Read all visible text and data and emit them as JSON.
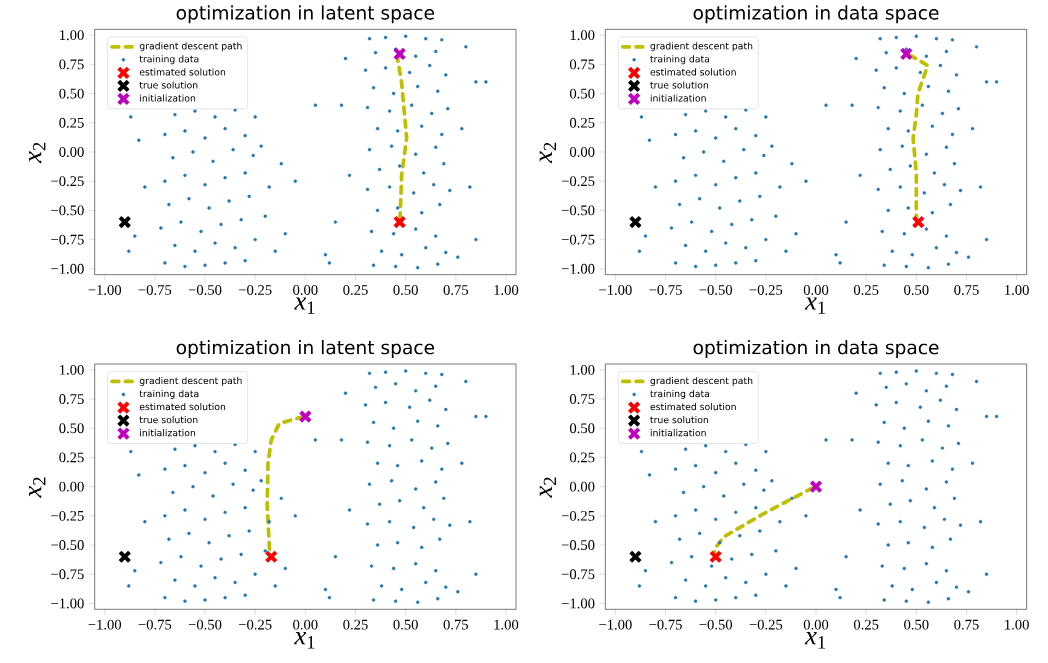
{
  "chart_data": [
    {
      "type": "scatter",
      "title": "optimization in latent space",
      "xlabel": "*x*$_{1}$",
      "ylabel": "*x*$_{2}$",
      "legend": "top left",
      "xlim": [
        -1.05,
        1.05
      ],
      "ylim": [
        -1.05,
        1.05
      ],
      "xticks": [
        {
          "value": -1,
          "label": "−1.00"
        },
        {
          "value": -0.75,
          "label": "−0.75"
        },
        {
          "value": -0.5,
          "label": "−0.50"
        },
        {
          "value": -0.25,
          "label": "−0.25"
        },
        {
          "value": 0,
          "label": "0.00"
        },
        {
          "value": 0.25,
          "label": "0.25"
        },
        {
          "value": 0.5,
          "label": "0.50"
        },
        {
          "value": 0.75,
          "label": "0.75"
        },
        {
          "value": 1,
          "label": "1.00"
        }
      ],
      "yticks": [
        {
          "value": -1,
          "label": "−1.00"
        },
        {
          "value": -0.75,
          "label": "−0.75"
        },
        {
          "value": -0.5,
          "label": "−0.50"
        },
        {
          "value": -0.25,
          "label": "−0.25"
        },
        {
          "value": 0,
          "label": "0.00"
        },
        {
          "value": 0.25,
          "label": "0.25"
        },
        {
          "value": 0.5,
          "label": "0.50"
        },
        {
          "value": 0.75,
          "label": "0.75"
        },
        {
          "value": 1,
          "label": "1.00"
        }
      ],
      "series": [
        {
          "name": "gradient descent path",
          "type": "line",
          "line_style": "dashed",
          "marker": "none",
          "color": "#bfbf00",
          "x": [
            0.47,
            0.46,
            0.48,
            0.505,
            0.48,
            0.472
          ],
          "values": [
            0.83,
            0.8,
            0.59,
            0.12,
            -0.2,
            -0.58
          ]
        },
        {
          "name": "training data",
          "marker": "circle",
          "color": "#1f77b4",
          "x": [
            -0.7,
            -0.6,
            -0.5,
            -0.4,
            -0.3,
            -0.65,
            -0.55,
            -0.45,
            -0.35,
            -0.25,
            -0.72,
            -0.62,
            -0.52,
            -0.42,
            -0.32,
            -0.68,
            -0.58,
            -0.48,
            -0.38,
            -0.28,
            -0.7,
            -0.6,
            -0.5,
            -0.4,
            -0.3,
            -0.66,
            -0.56,
            -0.46,
            -0.36,
            -0.26,
            -0.7,
            -0.6,
            -0.5,
            -0.4,
            -0.3,
            -0.65,
            -0.55,
            -0.45,
            -0.35,
            -0.25,
            -0.85,
            -0.88,
            -0.8,
            -0.83,
            -0.2,
            -0.18,
            -0.15,
            -0.22,
            -0.1,
            -0.12,
            -0.05,
            -0.87,
            0.32,
            0.4,
            0.5,
            0.6,
            0.68,
            0.35,
            0.45,
            0.55,
            0.65,
            0.3,
            0.4,
            0.52,
            0.62,
            0.7,
            0.34,
            0.44,
            0.56,
            0.66,
            0.31,
            0.42,
            0.53,
            0.63,
            0.71,
            0.36,
            0.46,
            0.58,
            0.68,
            0.32,
            0.43,
            0.55,
            0.65,
            0.37,
            0.47,
            0.59,
            0.69,
            0.31,
            0.42,
            0.54,
            0.64,
            0.72,
            0.36,
            0.46,
            0.58,
            0.67,
            0.33,
            0.44,
            0.55,
            0.65,
            0.38,
            0.48,
            0.6,
            0.7,
            0.34,
            0.45,
            0.56,
            0.66,
            0.2,
            0.18,
            0.22,
            0.15,
            0.1,
            0.12,
            0.8,
            0.85,
            0.78,
            0.82,
            0.85,
            0.9,
            0.05,
            0.76
          ],
          "values": [
            -0.95,
            -0.98,
            -0.97,
            -0.95,
            -0.93,
            -0.8,
            -0.85,
            -0.78,
            -0.82,
            -0.75,
            -0.65,
            -0.6,
            -0.68,
            -0.62,
            -0.58,
            -0.45,
            -0.4,
            -0.48,
            -0.42,
            -0.38,
            -0.25,
            -0.2,
            -0.28,
            -0.22,
            -0.18,
            -0.05,
            0.0,
            -0.08,
            0.02,
            -0.03,
            0.15,
            0.18,
            0.12,
            0.2,
            0.14,
            0.32,
            0.35,
            0.3,
            0.36,
            0.3,
            -0.72,
            -0.85,
            -0.3,
            0.1,
            -0.55,
            -0.3,
            -0.85,
            0.05,
            -0.7,
            -0.1,
            -0.25,
            0.3,
            0.97,
            0.98,
            0.99,
            0.97,
            0.96,
            0.85,
            0.88,
            0.82,
            0.86,
            0.7,
            0.72,
            0.68,
            0.74,
            0.66,
            0.55,
            0.5,
            0.56,
            0.52,
            0.38,
            0.35,
            0.4,
            0.33,
            0.37,
            0.2,
            0.18,
            0.22,
            0.15,
            0.02,
            0.05,
            -0.02,
            0.04,
            -0.15,
            -0.12,
            -0.18,
            -0.1,
            -0.32,
            -0.3,
            -0.35,
            -0.28,
            -0.33,
            -0.5,
            -0.48,
            -0.52,
            -0.45,
            -0.68,
            -0.7,
            -0.66,
            -0.72,
            -0.85,
            -0.88,
            -0.82,
            -0.86,
            -0.97,
            -0.98,
            -0.99,
            -0.96,
            0.8,
            0.4,
            -0.2,
            -0.6,
            -0.88,
            -0.95,
            0.9,
            0.6,
            0.2,
            -0.3,
            -0.75,
            0.6,
            0.4,
            -0.9
          ]
        },
        {
          "name": "estimated solution",
          "marker": "cross",
          "color": "#ff0000",
          "x": [
            0.47
          ],
          "values": [
            -0.6
          ]
        },
        {
          "name": "true solution",
          "marker": "cross",
          "color": "#000000",
          "x": [
            -0.9
          ],
          "values": [
            -0.6
          ]
        },
        {
          "name": "initialization",
          "marker": "cross",
          "color": "#bf00bf",
          "x": [
            0.47
          ],
          "values": [
            0.84
          ]
        }
      ]
    },
    {
      "type": "scatter",
      "title": "optimization in data space",
      "xlabel": "*x*$_{1}$",
      "ylabel": "*x*$_{2}$",
      "legend": "top left",
      "xlim": [
        -1.05,
        1.05
      ],
      "ylim": [
        -1.05,
        1.05
      ],
      "xticks": [
        {
          "value": -1,
          "label": "−1.00"
        },
        {
          "value": -0.75,
          "label": "−0.75"
        },
        {
          "value": -0.5,
          "label": "−0.50"
        },
        {
          "value": -0.25,
          "label": "−0.25"
        },
        {
          "value": 0,
          "label": "0.00"
        },
        {
          "value": 0.25,
          "label": "0.25"
        },
        {
          "value": 0.5,
          "label": "0.50"
        },
        {
          "value": 0.75,
          "label": "0.75"
        },
        {
          "value": 1,
          "label": "1.00"
        }
      ],
      "yticks": [
        {
          "value": -1,
          "label": "−1.00"
        },
        {
          "value": -0.75,
          "label": "−0.75"
        },
        {
          "value": -0.5,
          "label": "−0.50"
        },
        {
          "value": -0.25,
          "label": "−0.25"
        },
        {
          "value": 0,
          "label": "0.00"
        },
        {
          "value": 0.25,
          "label": "0.25"
        },
        {
          "value": 0.5,
          "label": "0.50"
        },
        {
          "value": 0.75,
          "label": "0.75"
        },
        {
          "value": 1,
          "label": "1.00"
        }
      ],
      "series": [
        {
          "name": "gradient descent path",
          "type": "line",
          "line_style": "dashed",
          "marker": "none",
          "color": "#bfbf00",
          "x": [
            0.467,
            0.557,
            0.508,
            0.5,
            0.484,
            0.5,
            0.5
          ],
          "values": [
            0.83,
            0.74,
            0.5,
            0.32,
            0.12,
            -0.18,
            -0.56
          ]
        },
        {
          "name": "training data",
          "marker": "circle",
          "color": "#1f77b4",
          "x": [
            -0.7,
            -0.6,
            -0.5,
            -0.4,
            -0.3,
            -0.65,
            -0.55,
            -0.45,
            -0.35,
            -0.25,
            -0.72,
            -0.62,
            -0.52,
            -0.42,
            -0.32,
            -0.68,
            -0.58,
            -0.48,
            -0.38,
            -0.28,
            -0.7,
            -0.6,
            -0.5,
            -0.4,
            -0.3,
            -0.66,
            -0.56,
            -0.46,
            -0.36,
            -0.26,
            -0.7,
            -0.6,
            -0.5,
            -0.4,
            -0.3,
            -0.65,
            -0.55,
            -0.45,
            -0.35,
            -0.25,
            -0.85,
            -0.88,
            -0.8,
            -0.83,
            -0.2,
            -0.18,
            -0.15,
            -0.22,
            -0.1,
            -0.12,
            -0.05,
            -0.87,
            0.32,
            0.4,
            0.5,
            0.6,
            0.68,
            0.35,
            0.45,
            0.55,
            0.65,
            0.3,
            0.4,
            0.52,
            0.62,
            0.7,
            0.34,
            0.44,
            0.56,
            0.66,
            0.31,
            0.42,
            0.53,
            0.63,
            0.71,
            0.36,
            0.46,
            0.58,
            0.68,
            0.32,
            0.43,
            0.55,
            0.65,
            0.37,
            0.47,
            0.59,
            0.69,
            0.31,
            0.42,
            0.54,
            0.64,
            0.72,
            0.36,
            0.46,
            0.58,
            0.67,
            0.33,
            0.44,
            0.55,
            0.65,
            0.38,
            0.48,
            0.6,
            0.7,
            0.34,
            0.45,
            0.56,
            0.66,
            0.2,
            0.18,
            0.22,
            0.15,
            0.1,
            0.12,
            0.8,
            0.85,
            0.78,
            0.82,
            0.85,
            0.9,
            0.05,
            0.76
          ],
          "values": [
            -0.95,
            -0.98,
            -0.97,
            -0.95,
            -0.93,
            -0.8,
            -0.85,
            -0.78,
            -0.82,
            -0.75,
            -0.65,
            -0.6,
            -0.68,
            -0.62,
            -0.58,
            -0.45,
            -0.4,
            -0.48,
            -0.42,
            -0.38,
            -0.25,
            -0.2,
            -0.28,
            -0.22,
            -0.18,
            -0.05,
            0.0,
            -0.08,
            0.02,
            -0.03,
            0.15,
            0.18,
            0.12,
            0.2,
            0.14,
            0.32,
            0.35,
            0.3,
            0.36,
            0.3,
            -0.72,
            -0.85,
            -0.3,
            0.1,
            -0.55,
            -0.3,
            -0.85,
            0.05,
            -0.7,
            -0.1,
            -0.25,
            0.3,
            0.97,
            0.98,
            0.99,
            0.97,
            0.96,
            0.85,
            0.88,
            0.82,
            0.86,
            0.7,
            0.72,
            0.68,
            0.74,
            0.66,
            0.55,
            0.5,
            0.56,
            0.52,
            0.38,
            0.35,
            0.4,
            0.33,
            0.37,
            0.2,
            0.18,
            0.22,
            0.15,
            0.02,
            0.05,
            -0.02,
            0.04,
            -0.15,
            -0.12,
            -0.18,
            -0.1,
            -0.32,
            -0.3,
            -0.35,
            -0.28,
            -0.33,
            -0.5,
            -0.48,
            -0.52,
            -0.45,
            -0.68,
            -0.7,
            -0.66,
            -0.72,
            -0.85,
            -0.88,
            -0.82,
            -0.86,
            -0.97,
            -0.98,
            -0.99,
            -0.96,
            0.8,
            0.4,
            -0.2,
            -0.6,
            -0.88,
            -0.95,
            0.9,
            0.6,
            0.2,
            -0.3,
            -0.75,
            0.6,
            0.4,
            -0.9
          ]
        },
        {
          "name": "estimated solution",
          "marker": "cross",
          "color": "#ff0000",
          "x": [
            0.51
          ],
          "values": [
            -0.6
          ]
        },
        {
          "name": "true solution",
          "marker": "cross",
          "color": "#000000",
          "x": [
            -0.9
          ],
          "values": [
            -0.6
          ]
        },
        {
          "name": "initialization",
          "marker": "cross",
          "color": "#bf00bf",
          "x": [
            0.45
          ],
          "values": [
            0.84
          ]
        }
      ]
    },
    {
      "type": "scatter",
      "title": "optimization in latent space",
      "xlabel": "*x*$_{1}$",
      "ylabel": "*x*$_{2}$",
      "legend": "top left",
      "xlim": [
        -1.05,
        1.05
      ],
      "ylim": [
        -1.05,
        1.05
      ],
      "xticks": [
        {
          "value": -1,
          "label": "−1.00"
        },
        {
          "value": -0.75,
          "label": "−0.75"
        },
        {
          "value": -0.5,
          "label": "−0.50"
        },
        {
          "value": -0.25,
          "label": "−0.25"
        },
        {
          "value": 0,
          "label": "0.00"
        },
        {
          "value": 0.25,
          "label": "0.25"
        },
        {
          "value": 0.5,
          "label": "0.50"
        },
        {
          "value": 0.75,
          "label": "0.75"
        },
        {
          "value": 1,
          "label": "1.00"
        }
      ],
      "yticks": [
        {
          "value": -1,
          "label": "−1.00"
        },
        {
          "value": -0.75,
          "label": "−0.75"
        },
        {
          "value": -0.5,
          "label": "−0.50"
        },
        {
          "value": -0.25,
          "label": "−0.25"
        },
        {
          "value": 0,
          "label": "0.00"
        },
        {
          "value": 0.25,
          "label": "0.25"
        },
        {
          "value": 0.5,
          "label": "0.50"
        },
        {
          "value": 0.75,
          "label": "0.75"
        },
        {
          "value": 1,
          "label": "1.00"
        }
      ],
      "series": [
        {
          "name": "gradient descent path",
          "type": "line",
          "line_style": "dashed",
          "marker": "none",
          "color": "#bfbf00",
          "x": [
            -0.01,
            -0.13,
            -0.17,
            -0.186,
            -0.19,
            -0.178
          ],
          "values": [
            0.6,
            0.54,
            0.4,
            0.2,
            -0.16,
            -0.56
          ]
        },
        {
          "name": "training data",
          "marker": "circle",
          "color": "#1f77b4",
          "x": [
            -0.7,
            -0.6,
            -0.5,
            -0.4,
            -0.3,
            -0.65,
            -0.55,
            -0.45,
            -0.35,
            -0.25,
            -0.72,
            -0.62,
            -0.52,
            -0.42,
            -0.32,
            -0.68,
            -0.58,
            -0.48,
            -0.38,
            -0.28,
            -0.7,
            -0.6,
            -0.5,
            -0.4,
            -0.3,
            -0.66,
            -0.56,
            -0.46,
            -0.36,
            -0.26,
            -0.7,
            -0.6,
            -0.5,
            -0.4,
            -0.3,
            -0.65,
            -0.55,
            -0.45,
            -0.35,
            -0.25,
            -0.85,
            -0.88,
            -0.8,
            -0.83,
            -0.2,
            -0.18,
            -0.15,
            -0.22,
            -0.1,
            -0.12,
            -0.05,
            -0.87,
            0.32,
            0.4,
            0.5,
            0.6,
            0.68,
            0.35,
            0.45,
            0.55,
            0.65,
            0.3,
            0.4,
            0.52,
            0.62,
            0.7,
            0.34,
            0.44,
            0.56,
            0.66,
            0.31,
            0.42,
            0.53,
            0.63,
            0.71,
            0.36,
            0.46,
            0.58,
            0.68,
            0.32,
            0.43,
            0.55,
            0.65,
            0.37,
            0.47,
            0.59,
            0.69,
            0.31,
            0.42,
            0.54,
            0.64,
            0.72,
            0.36,
            0.46,
            0.58,
            0.67,
            0.33,
            0.44,
            0.55,
            0.65,
            0.38,
            0.48,
            0.6,
            0.7,
            0.34,
            0.45,
            0.56,
            0.66,
            0.2,
            0.18,
            0.22,
            0.15,
            0.1,
            0.12,
            0.8,
            0.85,
            0.78,
            0.82,
            0.85,
            0.9,
            0.05,
            0.76
          ],
          "values": [
            -0.95,
            -0.98,
            -0.97,
            -0.95,
            -0.93,
            -0.8,
            -0.85,
            -0.78,
            -0.82,
            -0.75,
            -0.65,
            -0.6,
            -0.68,
            -0.62,
            -0.58,
            -0.45,
            -0.4,
            -0.48,
            -0.42,
            -0.38,
            -0.25,
            -0.2,
            -0.28,
            -0.22,
            -0.18,
            -0.05,
            0.0,
            -0.08,
            0.02,
            -0.03,
            0.15,
            0.18,
            0.12,
            0.2,
            0.14,
            0.32,
            0.35,
            0.3,
            0.36,
            0.3,
            -0.72,
            -0.85,
            -0.3,
            0.1,
            -0.55,
            -0.3,
            -0.85,
            0.05,
            -0.7,
            -0.1,
            -0.25,
            0.3,
            0.97,
            0.98,
            0.99,
            0.97,
            0.96,
            0.85,
            0.88,
            0.82,
            0.86,
            0.7,
            0.72,
            0.68,
            0.74,
            0.66,
            0.55,
            0.5,
            0.56,
            0.52,
            0.38,
            0.35,
            0.4,
            0.33,
            0.37,
            0.2,
            0.18,
            0.22,
            0.15,
            0.02,
            0.05,
            -0.02,
            0.04,
            -0.15,
            -0.12,
            -0.18,
            -0.1,
            -0.32,
            -0.3,
            -0.35,
            -0.28,
            -0.33,
            -0.5,
            -0.48,
            -0.52,
            -0.45,
            -0.68,
            -0.7,
            -0.66,
            -0.72,
            -0.85,
            -0.88,
            -0.82,
            -0.86,
            -0.97,
            -0.98,
            -0.99,
            -0.96,
            0.8,
            0.4,
            -0.2,
            -0.6,
            -0.88,
            -0.95,
            0.9,
            0.6,
            0.2,
            -0.3,
            -0.75,
            0.6,
            0.4,
            -0.9
          ]
        },
        {
          "name": "estimated solution",
          "marker": "cross",
          "color": "#ff0000",
          "x": [
            -0.17
          ],
          "values": [
            -0.6
          ]
        },
        {
          "name": "true solution",
          "marker": "cross",
          "color": "#000000",
          "x": [
            -0.9
          ],
          "values": [
            -0.6
          ]
        },
        {
          "name": "initialization",
          "marker": "cross",
          "color": "#bf00bf",
          "x": [
            0.0
          ],
          "values": [
            0.6
          ]
        }
      ]
    },
    {
      "type": "scatter",
      "title": "optimization in data space",
      "xlabel": "*x*$_{1}$",
      "ylabel": "*x*$_{2}$",
      "legend": "top left",
      "xlim": [
        -1.05,
        1.05
      ],
      "ylim": [
        -1.05,
        1.05
      ],
      "xticks": [
        {
          "value": -1,
          "label": "−1.00"
        },
        {
          "value": -0.75,
          "label": "−0.75"
        },
        {
          "value": -0.5,
          "label": "−0.50"
        },
        {
          "value": -0.25,
          "label": "−0.25"
        },
        {
          "value": 0,
          "label": "0.00"
        },
        {
          "value": 0.25,
          "label": "0.25"
        },
        {
          "value": 0.5,
          "label": "0.50"
        },
        {
          "value": 0.75,
          "label": "0.75"
        },
        {
          "value": 1,
          "label": "1.00"
        }
      ],
      "yticks": [
        {
          "value": -1,
          "label": "−1.00"
        },
        {
          "value": -0.75,
          "label": "−0.75"
        },
        {
          "value": -0.5,
          "label": "−0.50"
        },
        {
          "value": -0.25,
          "label": "−0.25"
        },
        {
          "value": 0,
          "label": "0.00"
        },
        {
          "value": 0.25,
          "label": "0.25"
        },
        {
          "value": 0.5,
          "label": "0.50"
        },
        {
          "value": 0.75,
          "label": "0.75"
        },
        {
          "value": 1,
          "label": "1.00"
        }
      ],
      "series": [
        {
          "name": "gradient descent path",
          "type": "line",
          "line_style": "dashed",
          "marker": "none",
          "color": "#bfbf00",
          "x": [
            -0.016,
            -0.26,
            -0.46,
            -0.5,
            -0.505
          ],
          "values": [
            -0.01,
            -0.23,
            -0.43,
            -0.52,
            -0.56
          ]
        },
        {
          "name": "training data",
          "marker": "circle",
          "color": "#1f77b4",
          "x": [
            -0.7,
            -0.6,
            -0.5,
            -0.4,
            -0.3,
            -0.65,
            -0.55,
            -0.45,
            -0.35,
            -0.25,
            -0.72,
            -0.62,
            -0.52,
            -0.42,
            -0.32,
            -0.68,
            -0.58,
            -0.48,
            -0.38,
            -0.28,
            -0.7,
            -0.6,
            -0.5,
            -0.4,
            -0.3,
            -0.66,
            -0.56,
            -0.46,
            -0.36,
            -0.26,
            -0.7,
            -0.6,
            -0.5,
            -0.4,
            -0.3,
            -0.65,
            -0.55,
            -0.45,
            -0.35,
            -0.25,
            -0.85,
            -0.88,
            -0.8,
            -0.83,
            -0.2,
            -0.18,
            -0.15,
            -0.22,
            -0.1,
            -0.12,
            -0.05,
            -0.87,
            0.32,
            0.4,
            0.5,
            0.6,
            0.68,
            0.35,
            0.45,
            0.55,
            0.65,
            0.3,
            0.4,
            0.52,
            0.62,
            0.7,
            0.34,
            0.44,
            0.56,
            0.66,
            0.31,
            0.42,
            0.53,
            0.63,
            0.71,
            0.36,
            0.46,
            0.58,
            0.68,
            0.32,
            0.43,
            0.55,
            0.65,
            0.37,
            0.47,
            0.59,
            0.69,
            0.31,
            0.42,
            0.54,
            0.64,
            0.72,
            0.36,
            0.46,
            0.58,
            0.67,
            0.33,
            0.44,
            0.55,
            0.65,
            0.38,
            0.48,
            0.6,
            0.7,
            0.34,
            0.45,
            0.56,
            0.66,
            0.2,
            0.18,
            0.22,
            0.15,
            0.1,
            0.12,
            0.8,
            0.85,
            0.78,
            0.82,
            0.85,
            0.9,
            0.05,
            0.76
          ],
          "values": [
            -0.95,
            -0.98,
            -0.97,
            -0.95,
            -0.93,
            -0.8,
            -0.85,
            -0.78,
            -0.82,
            -0.75,
            -0.65,
            -0.6,
            -0.68,
            -0.62,
            -0.58,
            -0.45,
            -0.4,
            -0.48,
            -0.42,
            -0.38,
            -0.25,
            -0.2,
            -0.28,
            -0.22,
            -0.18,
            -0.05,
            0.0,
            -0.08,
            0.02,
            -0.03,
            0.15,
            0.18,
            0.12,
            0.2,
            0.14,
            0.32,
            0.35,
            0.3,
            0.36,
            0.3,
            -0.72,
            -0.85,
            -0.3,
            0.1,
            -0.55,
            -0.3,
            -0.85,
            0.05,
            -0.7,
            -0.1,
            -0.25,
            0.3,
            0.97,
            0.98,
            0.99,
            0.97,
            0.96,
            0.85,
            0.88,
            0.82,
            0.86,
            0.7,
            0.72,
            0.68,
            0.74,
            0.66,
            0.55,
            0.5,
            0.56,
            0.52,
            0.38,
            0.35,
            0.4,
            0.33,
            0.37,
            0.2,
            0.18,
            0.22,
            0.15,
            0.02,
            0.05,
            -0.02,
            0.04,
            -0.15,
            -0.12,
            -0.18,
            -0.1,
            -0.32,
            -0.3,
            -0.35,
            -0.28,
            -0.33,
            -0.5,
            -0.48,
            -0.52,
            -0.45,
            -0.68,
            -0.7,
            -0.66,
            -0.72,
            -0.85,
            -0.88,
            -0.82,
            -0.86,
            -0.97,
            -0.98,
            -0.99,
            -0.96,
            0.8,
            0.4,
            -0.2,
            -0.6,
            -0.88,
            -0.95,
            0.9,
            0.6,
            0.2,
            -0.3,
            -0.75,
            0.6,
            0.4,
            -0.9
          ]
        },
        {
          "name": "estimated solution",
          "marker": "cross",
          "color": "#ff0000",
          "x": [
            -0.5
          ],
          "values": [
            -0.6
          ]
        },
        {
          "name": "true solution",
          "marker": "cross",
          "color": "#000000",
          "x": [
            -0.9
          ],
          "values": [
            -0.6
          ]
        },
        {
          "name": "initialization",
          "marker": "cross",
          "color": "#bf00bf",
          "x": [
            0.0
          ],
          "values": [
            0.0
          ]
        }
      ]
    }
  ]
}
